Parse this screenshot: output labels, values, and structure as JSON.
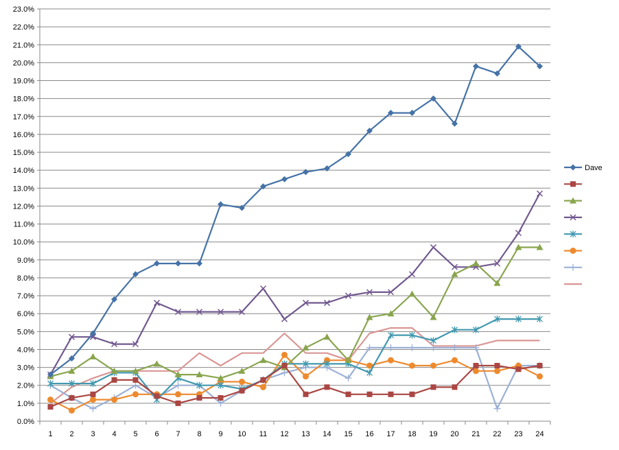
{
  "chart_data": {
    "type": "line",
    "title": "",
    "xlabel": "",
    "ylabel": "",
    "x": [
      1,
      2,
      3,
      4,
      5,
      6,
      7,
      8,
      9,
      10,
      11,
      12,
      13,
      14,
      15,
      16,
      17,
      18,
      19,
      20,
      21,
      22,
      23,
      24
    ],
    "ylim": [
      0,
      23
    ],
    "ytick_step": 1,
    "ytick_format": "percent_1dp",
    "grid": "horizontal",
    "legend_position": "right",
    "series": [
      {
        "name": "Dave",
        "color": "#4572A7",
        "marker": "diamond",
        "values": [
          2.6,
          3.5,
          4.9,
          6.8,
          8.2,
          8.8,
          8.8,
          8.8,
          12.1,
          11.9,
          13.1,
          13.5,
          13.9,
          14.1,
          14.9,
          16.2,
          17.2,
          17.2,
          18.0,
          16.6,
          19.8,
          19.4,
          20.9,
          19.8
        ]
      },
      {
        "name": "",
        "color": "#AA4643",
        "marker": "square",
        "values": [
          0.8,
          1.3,
          1.5,
          2.3,
          2.3,
          1.4,
          1.0,
          1.3,
          1.3,
          1.7,
          2.3,
          3.1,
          1.5,
          1.9,
          1.5,
          1.5,
          1.5,
          1.5,
          1.9,
          1.9,
          3.1,
          3.1,
          2.9,
          3.1
        ]
      },
      {
        "name": "",
        "color": "#89A54E",
        "marker": "triangle",
        "values": [
          2.5,
          2.8,
          3.6,
          2.8,
          2.8,
          3.2,
          2.6,
          2.6,
          2.4,
          2.8,
          3.4,
          3.0,
          4.1,
          4.7,
          3.4,
          5.8,
          6.0,
          7.1,
          5.8,
          8.2,
          8.8,
          7.7,
          9.7,
          9.7
        ]
      },
      {
        "name": "",
        "color": "#71588F",
        "marker": "x",
        "values": [
          2.6,
          4.7,
          4.7,
          4.3,
          4.3,
          6.6,
          6.1,
          6.1,
          6.1,
          6.1,
          7.4,
          5.7,
          6.6,
          6.6,
          7.0,
          7.2,
          7.2,
          8.2,
          9.7,
          8.6,
          8.6,
          8.8,
          10.5,
          12.7
        ]
      },
      {
        "name": "",
        "color": "#4198AF",
        "marker": "star",
        "values": [
          2.1,
          2.1,
          2.1,
          2.7,
          2.7,
          1.2,
          2.4,
          2.0,
          2.0,
          1.8,
          2.3,
          3.2,
          3.2,
          3.2,
          3.2,
          2.7,
          4.8,
          4.8,
          4.5,
          5.1,
          5.1,
          5.7,
          5.7,
          5.7
        ]
      },
      {
        "name": "",
        "color": "#ED8A2E",
        "marker": "circle",
        "values": [
          1.2,
          0.6,
          1.2,
          1.2,
          1.5,
          1.5,
          1.5,
          1.5,
          2.2,
          2.2,
          1.9,
          3.7,
          2.5,
          3.4,
          3.4,
          3.1,
          3.4,
          3.1,
          3.1,
          3.4,
          2.8,
          2.8,
          3.1,
          2.5
        ]
      },
      {
        "name": "",
        "color": "#9BB0D6",
        "marker": "plus",
        "values": [
          2.0,
          1.3,
          0.7,
          1.3,
          2.0,
          1.3,
          2.0,
          2.0,
          1.0,
          1.7,
          2.3,
          2.7,
          3.0,
          3.0,
          2.4,
          4.1,
          4.1,
          4.1,
          4.1,
          4.1,
          4.1,
          0.7,
          3.1,
          3.1
        ]
      },
      {
        "name": "",
        "color": "#D99694",
        "marker": "none",
        "values": [
          1.0,
          1.9,
          2.4,
          2.8,
          2.8,
          2.8,
          2.8,
          3.8,
          3.1,
          3.8,
          3.8,
          4.9,
          3.8,
          3.8,
          3.4,
          4.9,
          5.2,
          5.2,
          4.2,
          4.2,
          4.2,
          4.5,
          4.5,
          4.5
        ]
      }
    ]
  }
}
